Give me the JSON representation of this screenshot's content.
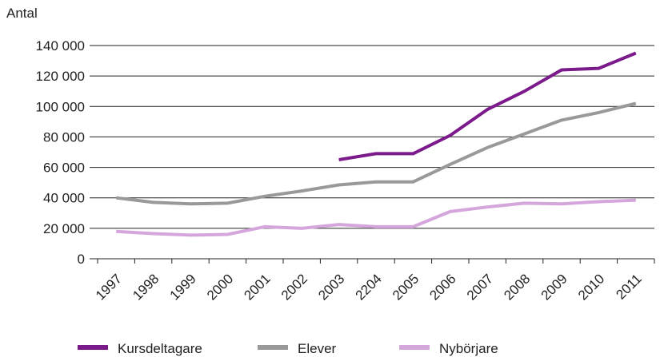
{
  "chart_data": {
    "type": "line",
    "title": "",
    "ylabel": "Antal",
    "xlabel": "",
    "categories": [
      "1997",
      "1998",
      "1999",
      "2000",
      "2001",
      "2002",
      "2003",
      "2204",
      "2005",
      "2006",
      "2007",
      "2008",
      "2009",
      "2010",
      "2011"
    ],
    "ylim": [
      0,
      140000
    ],
    "yticks": [
      0,
      20000,
      40000,
      60000,
      80000,
      100000,
      120000,
      140000
    ],
    "ytick_labels": [
      "0",
      "20 000",
      "40 000",
      "60 000",
      "80 000",
      "100 000",
      "120 000",
      "140 000"
    ],
    "grid": "horizontal",
    "legend_position": "bottom",
    "series": [
      {
        "name": "Kursdeltagare",
        "color": "#7b1a8b",
        "values": [
          null,
          null,
          null,
          null,
          null,
          null,
          65000,
          69000,
          69000,
          81000,
          98000,
          110000,
          124000,
          125000,
          135000
        ]
      },
      {
        "name": "Elever",
        "color": "#999999",
        "values": [
          40000,
          37000,
          36000,
          36500,
          41000,
          44500,
          48500,
          50500,
          50500,
          62000,
          73000,
          82000,
          91000,
          96000,
          102000
        ]
      },
      {
        "name": "Nybörjare",
        "color": "#d4a6dc",
        "values": [
          18000,
          16500,
          15500,
          16000,
          21000,
          20000,
          22500,
          21000,
          21000,
          31000,
          34000,
          36500,
          36000,
          37500,
          38500
        ]
      }
    ]
  }
}
